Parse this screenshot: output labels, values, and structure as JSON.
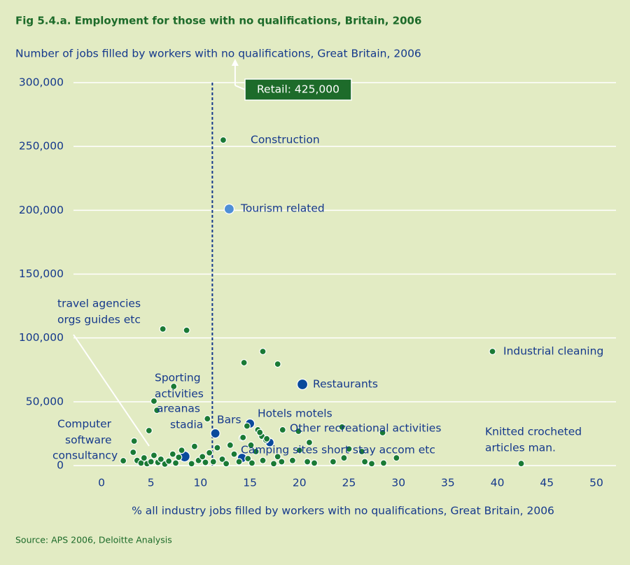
{
  "chart_data": {
    "type": "scatter",
    "title": "Fig 5.4.a. Employment for those with no qualifications, Britain, 2006",
    "subtitle": "Number of jobs filled by workers with no qualifications, Great Britain, 2006",
    "x_label": "% all industry jobs filled by workers with no qualifications, Great Britain, 2006",
    "source": "Source: APS 2006, Deloitte Analysis",
    "xlim": [
      -5,
      52
    ],
    "ylim": [
      0,
      300000
    ],
    "xticks": [
      0,
      5,
      10,
      15,
      20,
      25,
      30,
      35,
      40,
      45,
      50
    ],
    "yticks": [
      0,
      {
        "value": 50000,
        "label": "50,000"
      },
      {
        "value": 100000,
        "label": "100,000"
      },
      {
        "value": 150000,
        "label": "150,000"
      },
      {
        "value": 200000,
        "label": "200,000"
      },
      {
        "value": 250000,
        "label": "250,000"
      },
      {
        "value": 300000,
        "label": "300,000"
      }
    ],
    "grid": true,
    "reference_x": 11.2,
    "retail": {
      "label": "Retail: 425,000",
      "x": 13.5,
      "value": 425000
    },
    "x": [
      12.3,
      12.9,
      6.2,
      8.6,
      39.5,
      14.4,
      16.3,
      17.8,
      20.3,
      7.3,
      5.3,
      5.6,
      10.7,
      15.0,
      4.8,
      8.4,
      11.5,
      14.2,
      17.0,
      42.4,
      28.4,
      24.3,
      18.3,
      21.0,
      19.9,
      14.7,
      14.2,
      15.1,
      15.8,
      16.2,
      16.6,
      2.2,
      3.2,
      3.3,
      3.6,
      4.0,
      4.3,
      4.6,
      5.0,
      5.3,
      5.7,
      6.0,
      6.4,
      6.8,
      7.2,
      7.5,
      7.8,
      8.1,
      9.1,
      9.4,
      9.8,
      10.2,
      10.5,
      10.9,
      11.3,
      11.7,
      12.2,
      12.6,
      13.0,
      13.4,
      13.9,
      14.3,
      14.8,
      15.2,
      15.6,
      16.0,
      16.3,
      16.7,
      17.4,
      17.8,
      18.2,
      19.3,
      20.0,
      20.8,
      21.5,
      23.4,
      24.5,
      25.0,
      26.3,
      26.6,
      27.3,
      28.5,
      29.8
    ],
    "values": [
      255000,
      201000,
      107000,
      106000,
      89400,
      80600,
      89400,
      79500,
      63600,
      62000,
      50500,
      43300,
      36700,
      32900,
      27400,
      7100,
      25200,
      6000,
      18100,
      1600,
      25800,
      30200,
      28000,
      18100,
      26900,
      31000,
      21700,
      16000,
      28000,
      23000,
      20000,
      3800,
      10400,
      19200,
      4000,
      2000,
      6000,
      1500,
      3000,
      8000,
      2500,
      5000,
      1200,
      3500,
      9000,
      2000,
      6500,
      12000,
      1500,
      15000,
      4000,
      7000,
      2500,
      10000,
      3000,
      14000,
      5000,
      1500,
      16000,
      9000,
      3000,
      22000,
      5500,
      2000,
      11000,
      26000,
      4000,
      21000,
      1500,
      7000,
      3000,
      4000,
      12000,
      3000,
      2000,
      3000,
      6000,
      13000,
      11000,
      3000,
      1500,
      2000,
      6000
    ],
    "sizes": [
      4.5,
      7,
      4.5,
      4.5,
      4.5,
      4.5,
      4.5,
      4.5,
      7.5,
      4.5,
      4.5,
      4.5,
      4.5,
      6.5,
      4.5,
      7.5,
      6.5,
      6.5,
      6,
      4.5,
      4.5,
      4.5,
      4.5,
      4.5,
      4.5,
      4.5,
      4.5,
      4.5,
      4.5,
      4.5,
      4.5,
      4.5,
      4.5,
      4.5,
      4.5,
      4.5,
      4.5,
      4.5,
      4.5,
      4.5,
      4.5,
      4.5,
      4.5,
      4.5,
      4.5,
      4.5,
      4.5,
      4.5,
      4.5,
      4.5,
      4.5,
      4.5,
      4.5,
      4.5,
      4.5,
      4.5,
      4.5,
      4.5,
      4.5,
      4.5,
      4.5,
      4.5,
      4.5,
      4.5,
      4.5,
      4.5,
      4.5,
      4.5,
      4.5,
      4.5,
      4.5,
      4.5,
      4.5,
      4.5,
      4.5,
      4.5,
      4.5,
      4.5,
      4.5,
      4.5,
      4.5,
      4.5,
      4.5
    ],
    "colors": [
      "#1a7a35",
      "#4f8fd6",
      "#1a7a35",
      "#1a7a35",
      "#1a7a35",
      "#1a7a35",
      "#1a7a35",
      "#1a7a35",
      "#0a4a9c",
      "#1a7a35",
      "#1a7a35",
      "#1a7a35",
      "#1a7a35",
      "#0a4a9c",
      "#1a7a35",
      "#0a4a9c",
      "#0a4a9c",
      "#0a4a9c",
      "#0a4a9c",
      "#1a7a35",
      "#1a7a35",
      "#1a7a35",
      "#1a7a35",
      "#1a7a35",
      "#1a7a35",
      "#1a7a35",
      "#1a7a35",
      "#1a7a35",
      "#1a7a35",
      "#1a7a35",
      "#1a7a35",
      "#1a7a35",
      "#1a7a35",
      "#1a7a35",
      "#1a7a35",
      "#1a7a35",
      "#1a7a35",
      "#1a7a35",
      "#1a7a35",
      "#1a7a35",
      "#1a7a35",
      "#1a7a35",
      "#1a7a35",
      "#1a7a35",
      "#1a7a35",
      "#1a7a35",
      "#1a7a35",
      "#1a7a35",
      "#1a7a35",
      "#1a7a35",
      "#1a7a35",
      "#1a7a35",
      "#1a7a35",
      "#1a7a35",
      "#1a7a35",
      "#1a7a35",
      "#1a7a35",
      "#1a7a35",
      "#1a7a35",
      "#1a7a35",
      "#1a7a35",
      "#1a7a35",
      "#1a7a35",
      "#1a7a35",
      "#1a7a35",
      "#1a7a35",
      "#1a7a35",
      "#1a7a35",
      "#1a7a35",
      "#1a7a35",
      "#1a7a35",
      "#1a7a35",
      "#1a7a35",
      "#1a7a35",
      "#1a7a35",
      "#1a7a35",
      "#1a7a35",
      "#1a7a35",
      "#1a7a35",
      "#1a7a35",
      "#1a7a35",
      "#1a7a35",
      "#1a7a35"
    ],
    "annotations": [
      [
        "travel agencies",
        "orgs guides etc"
      ],
      [
        "Construction"
      ],
      [
        "Tourism related"
      ],
      [
        "Industrial cleaning"
      ],
      [
        "Restaurants"
      ],
      [
        "Sporting",
        "activities",
        "areanas",
        "stadia"
      ],
      [
        "Bars"
      ],
      [
        "Hotels motels"
      ],
      [
        "Other recreational activities"
      ],
      [
        "Camping sites short stay accom etc"
      ],
      [
        "Knitted crocheted",
        "articles man."
      ],
      [
        "Computer",
        "software",
        "consultancy"
      ]
    ]
  }
}
